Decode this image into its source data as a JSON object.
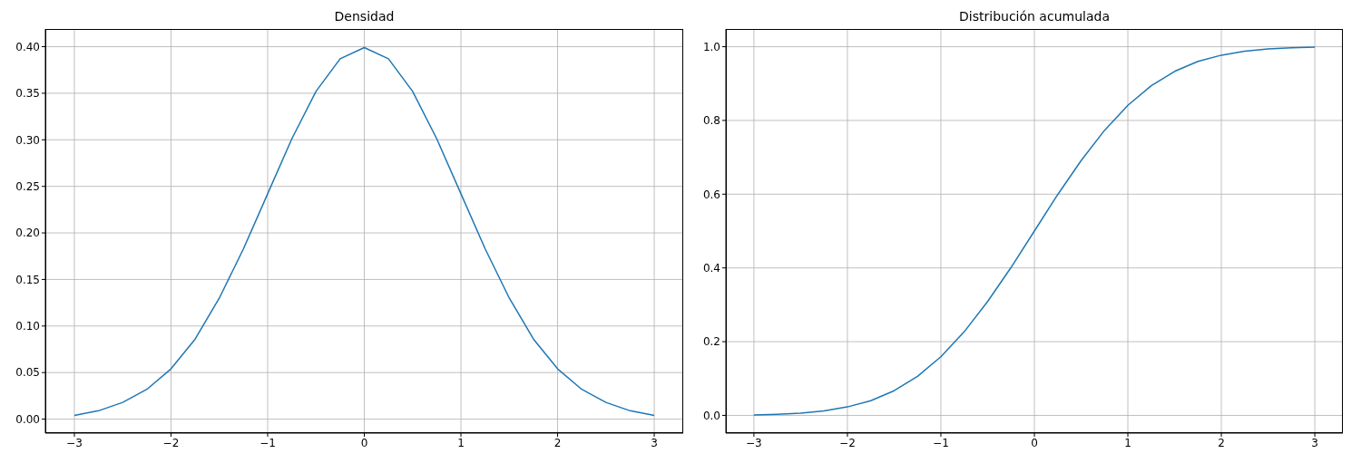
{
  "chart_data": [
    {
      "type": "line",
      "title": "Densidad",
      "x": [
        -3,
        -2.75,
        -2.5,
        -2.25,
        -2,
        -1.75,
        -1.5,
        -1.25,
        -1,
        -0.75,
        -0.5,
        -0.25,
        0,
        0.25,
        0.5,
        0.75,
        1,
        1.25,
        1.5,
        1.75,
        2,
        2.25,
        2.5,
        2.75,
        3
      ],
      "series": [
        {
          "color": "#1f77b4",
          "values": [
            0.004,
            0.009,
            0.018,
            0.032,
            0.054,
            0.086,
            0.13,
            0.183,
            0.242,
            0.301,
            0.352,
            0.387,
            0.399,
            0.387,
            0.352,
            0.301,
            0.242,
            0.183,
            0.13,
            0.086,
            0.054,
            0.032,
            0.018,
            0.009,
            0.004
          ]
        }
      ],
      "xlim": [
        -3.3,
        3.3
      ],
      "ylim": [
        -0.015,
        0.419
      ],
      "xticks": [
        {
          "value": -3,
          "label": "−3"
        },
        {
          "value": -2,
          "label": "−2"
        },
        {
          "value": -1,
          "label": "−1"
        },
        0,
        1,
        2,
        3
      ],
      "yticks": [
        {
          "value": 0,
          "label": "0.00"
        },
        {
          "value": 0.05,
          "label": "0.05"
        },
        {
          "value": 0.1,
          "label": "0.10"
        },
        {
          "value": 0.15,
          "label": "0.15"
        },
        {
          "value": 0.2,
          "label": "0.20"
        },
        {
          "value": 0.25,
          "label": "0.25"
        },
        {
          "value": 0.3,
          "label": "0.30"
        },
        {
          "value": 0.35,
          "label": "0.35"
        },
        {
          "value": 0.4,
          "label": "0.40"
        }
      ],
      "grid": true
    },
    {
      "type": "line",
      "title": "Distribución acumulada",
      "x": [
        -3,
        -2.75,
        -2.5,
        -2.25,
        -2,
        -1.75,
        -1.5,
        -1.25,
        -1,
        -0.75,
        -0.5,
        -0.25,
        0,
        0.25,
        0.5,
        0.75,
        1,
        1.25,
        1.5,
        1.75,
        2,
        2.25,
        2.5,
        2.75,
        3
      ],
      "series": [
        {
          "color": "#1f77b4",
          "values": [
            0.001,
            0.003,
            0.006,
            0.012,
            0.023,
            0.04,
            0.067,
            0.106,
            0.159,
            0.227,
            0.309,
            0.401,
            0.5,
            0.599,
            0.691,
            0.773,
            0.841,
            0.894,
            0.933,
            0.96,
            0.977,
            0.988,
            0.994,
            0.997,
            0.999
          ]
        }
      ],
      "xlim": [
        -3.3,
        3.3
      ],
      "ylim": [
        -0.048,
        1.048
      ],
      "xticks": [
        {
          "value": -3,
          "label": "−3"
        },
        {
          "value": -2,
          "label": "−2"
        },
        {
          "value": -1,
          "label": "−1"
        },
        0,
        1,
        2,
        3
      ],
      "yticks": [
        {
          "value": 0,
          "label": "0.0"
        },
        {
          "value": 0.2,
          "label": "0.2"
        },
        {
          "value": 0.4,
          "label": "0.4"
        },
        {
          "value": 0.6,
          "label": "0.6"
        },
        {
          "value": 0.8,
          "label": "0.8"
        },
        {
          "value": 1,
          "label": "1.0"
        }
      ],
      "grid": true
    }
  ]
}
